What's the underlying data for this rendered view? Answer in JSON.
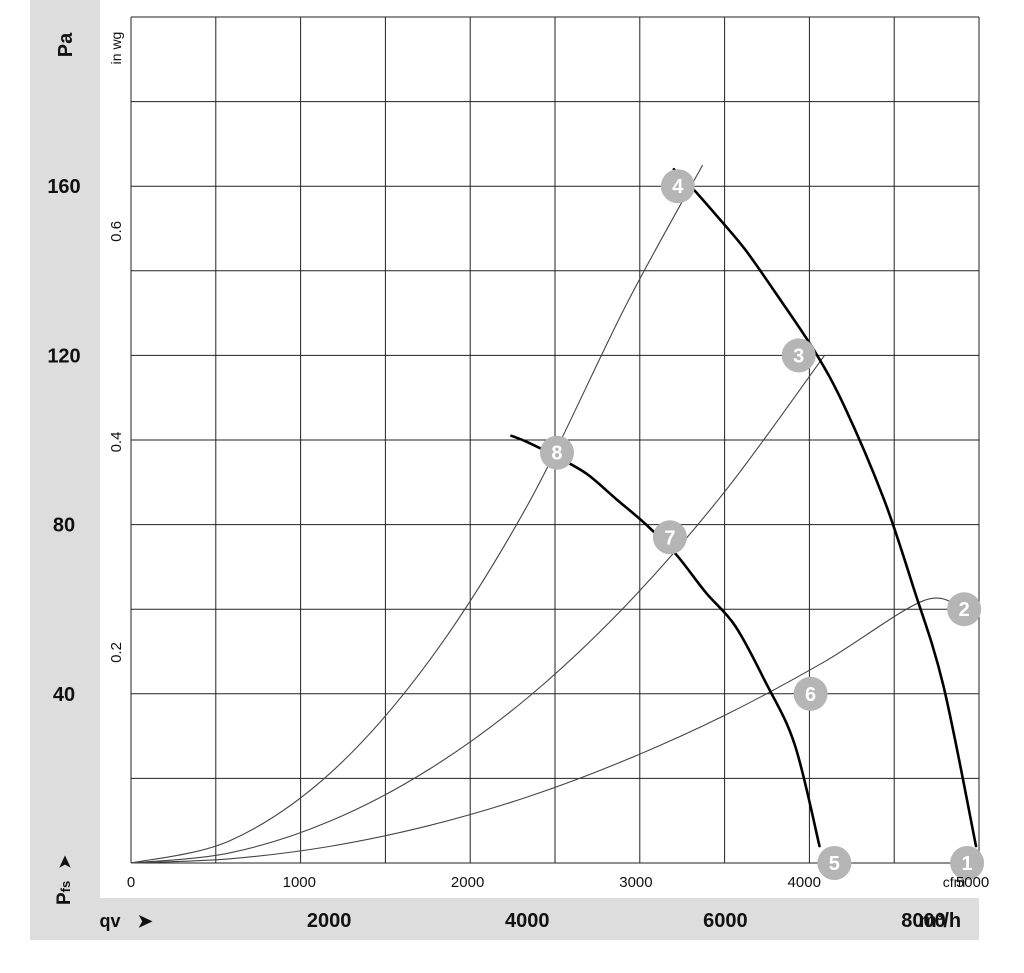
{
  "chart_data": {
    "type": "line",
    "title": "",
    "ylabel_primary": "Pa",
    "ylabel_secondary": "in wg",
    "y_axis_symbol_main": "P",
    "y_axis_symbol_sub": "fs",
    "y_axis_arrow": "➤",
    "x_axis_symbol": "qv",
    "x_axis_arrow": "➤",
    "xlabel_primary": "m³/h",
    "xlabel_secondary": "cfm",
    "xlim_m3h": [
      0,
      8560
    ],
    "ylim_pa": [
      0,
      200
    ],
    "grid": true,
    "pa_ticks": [
      "40",
      "80",
      "120",
      "160"
    ],
    "pa_tick_values": [
      40,
      80,
      120,
      160
    ],
    "inwg_ticks": [
      "0.2",
      "0.4",
      "0.6"
    ],
    "inwg_tick_values": [
      0.2,
      0.4,
      0.6
    ],
    "m3h_ticks": [
      "2000",
      "4000",
      "6000",
      "8000"
    ],
    "m3h_tick_values": [
      2000,
      4000,
      6000,
      8000
    ],
    "cfm_ticks": [
      "0",
      "1000",
      "2000",
      "3000",
      "4000",
      "5000"
    ],
    "cfm_tick_values": [
      0,
      1000,
      2000,
      3000,
      4000,
      5000
    ],
    "series": [
      {
        "style": "fan-curve",
        "x": [
          5480,
          5650,
          5950,
          6200,
          6500,
          6900,
          7200,
          7600,
          7900,
          8200,
          8530
        ],
        "y": [
          164,
          160,
          152,
          145,
          135,
          121,
          108,
          86,
          65,
          42,
          4
        ]
      },
      {
        "style": "fan-curve",
        "x": [
          3840,
          4000,
          4300,
          4600,
          4900,
          5200,
          5500,
          5800,
          6100,
          6400,
          6700,
          6950
        ],
        "y": [
          101,
          99.5,
          96,
          92,
          86,
          80,
          73,
          64,
          56,
          43,
          28,
          4
        ]
      },
      {
        "style": "system-curve",
        "x": [
          0,
          1000,
          2000,
          3000,
          4000,
          5000,
          5770
        ],
        "y": [
          0,
          5.3,
          21,
          47.5,
          84.5,
          132,
          165
        ]
      },
      {
        "style": "system-curve",
        "x": [
          0,
          1000,
          2000,
          3000,
          4000,
          5000,
          6000,
          7000
        ],
        "y": [
          0,
          2.4,
          9.8,
          22,
          39,
          61,
          88,
          120
        ]
      },
      {
        "style": "system-curve",
        "x": [
          0,
          1000,
          2000,
          3000,
          4000,
          5000,
          6000,
          7000,
          8000,
          8400
        ],
        "y": [
          0,
          1,
          3.9,
          8.8,
          15.6,
          24.4,
          35,
          47.6,
          62,
          60
        ]
      }
    ],
    "operating_points": [
      {
        "label": "1",
        "x": 8440,
        "y": 0
      },
      {
        "label": "2",
        "x": 8410,
        "y": 60
      },
      {
        "label": "3",
        "x": 6740,
        "y": 120
      },
      {
        "label": "4",
        "x": 5520,
        "y": 160
      },
      {
        "label": "5",
        "x": 7100,
        "y": 0
      },
      {
        "label": "6",
        "x": 6860,
        "y": 40
      },
      {
        "label": "7",
        "x": 5440,
        "y": 77
      },
      {
        "label": "8",
        "x": 4300,
        "y": 97
      }
    ]
  },
  "colors": {
    "band": "#dddddd",
    "grid": "#222222",
    "fan_curve": "#000000",
    "system_curve": "#444444",
    "marker": "#b5b5b5",
    "marker_text": "#ffffff"
  }
}
